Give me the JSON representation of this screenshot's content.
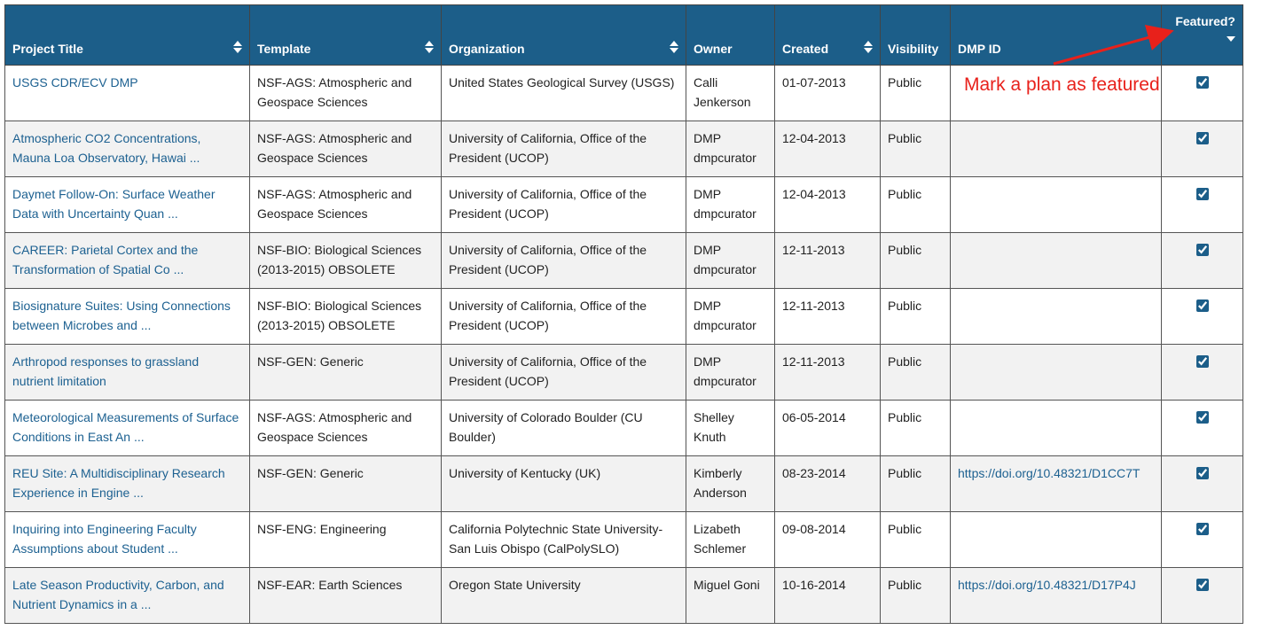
{
  "table": {
    "headers": [
      "Project Title",
      "Template",
      "Organization",
      "Owner",
      "Created",
      "Visibility",
      "DMP ID",
      "Featured?"
    ],
    "sortable": [
      true,
      true,
      true,
      false,
      true,
      false,
      false,
      false
    ],
    "rows": [
      [
        "USGS CDR/ECV DMP",
        "NSF-AGS: Atmospheric and Geospace Sciences",
        "United States Geological Survey (USGS)",
        "Calli Jenkerson",
        "01-07-2013",
        "Public",
        null
      ],
      [
        "Atmospheric CO2 Concentrations, Mauna Loa Observatory, Hawai ...",
        "NSF-AGS: Atmospheric and Geospace Sciences",
        "University of California, Office of the President (UCOP)",
        "DMP dmpcurator",
        "12-04-2013",
        "Public",
        null
      ],
      [
        "Daymet Follow-On: Surface Weather Data with Uncertainty Quan ...",
        "NSF-AGS: Atmospheric and Geospace Sciences",
        "University of California, Office of the President (UCOP)",
        "DMP dmpcurator",
        "12-04-2013",
        "Public",
        null
      ],
      [
        "CAREER: Parietal Cortex and the Transformation of Spatial Co ...",
        "NSF-BIO: Biological Sciences (2013-2015) OBSOLETE",
        "University of California, Office of the President (UCOP)",
        "DMP dmpcurator",
        "12-11-2013",
        "Public",
        null
      ],
      [
        "Biosignature Suites: Using Connections between Microbes and ...",
        "NSF-BIO: Biological Sciences (2013-2015) OBSOLETE",
        "University of California, Office of the President (UCOP)",
        "DMP dmpcurator",
        "12-11-2013",
        "Public",
        null
      ],
      [
        "Arthropod responses to grassland nutrient limitation",
        "NSF-GEN: Generic",
        "University of California, Office of the President (UCOP)",
        "DMP dmpcurator",
        "12-11-2013",
        "Public",
        null
      ],
      [
        "Meteorological Measurements of Surface Conditions in East An ...",
        "NSF-AGS: Atmospheric and Geospace Sciences",
        "University of Colorado Boulder (CU Boulder)",
        "Shelley Knuth",
        "06-05-2014",
        "Public",
        null
      ],
      [
        "REU Site: A Multidisciplinary Research Experience in Engine ...",
        "NSF-GEN: Generic",
        "University of Kentucky (UK)",
        "Kimberly Anderson",
        "08-23-2014",
        "Public",
        "https://doi.org/10.48321/D1CC7T"
      ],
      [
        "Inquiring into Engineering Faculty Assumptions about Student ...",
        "NSF-ENG: Engineering",
        "California Polytechnic State University-San Luis Obispo (CalPolySLO)",
        "Lizabeth Schlemer",
        "09-08-2014",
        "Public",
        null
      ],
      [
        "Late Season Productivity, Carbon, and Nutrient Dynamics in a ...",
        "NSF-EAR: Earth Sciences",
        "Oregon State University",
        "Miguel Goni",
        "10-16-2014",
        "Public",
        "https://doi.org/10.48321/D17P4J"
      ]
    ],
    "featured": [
      true,
      true,
      true,
      true,
      true,
      true,
      true,
      true,
      true,
      true
    ]
  },
  "annotation": "Mark a plan as featured"
}
